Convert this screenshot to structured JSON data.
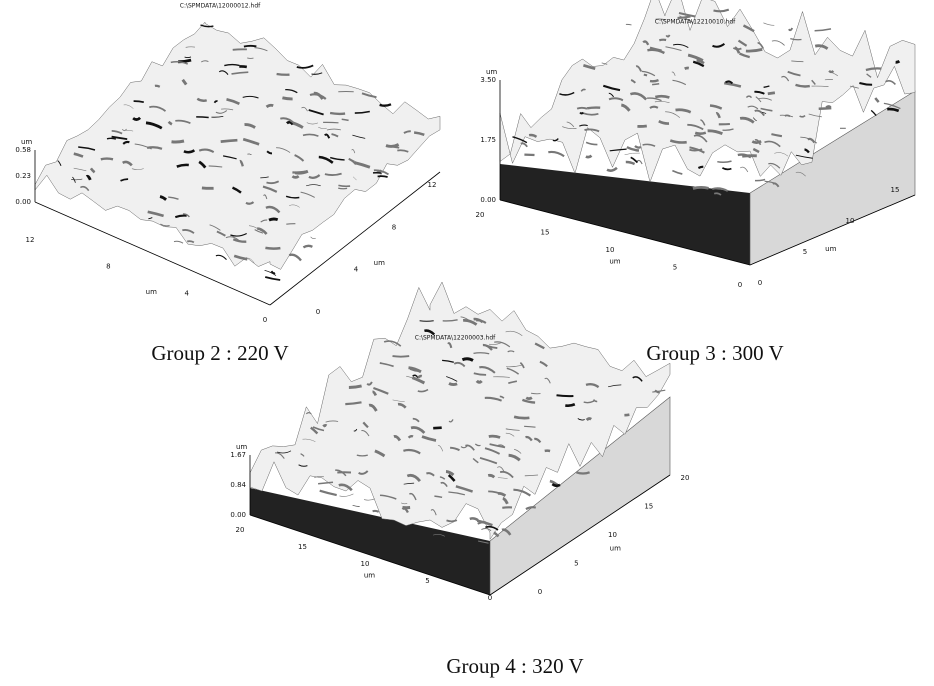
{
  "panels": [
    {
      "title": "C:\\SPMDATA\\12000012.hdf",
      "z_unit": "um",
      "z_ticks": [
        "0.58",
        "0.23",
        "0.00"
      ],
      "left_ticks": [
        "12",
        "8",
        "4",
        "0"
      ],
      "left_unit": "um",
      "right_ticks": [
        "12",
        "8",
        "4",
        "0"
      ],
      "right_unit": "um",
      "caption": "Group 2 : 220 V"
    },
    {
      "title": "C:\\SPMDATA\\12210010.hdf",
      "z_unit": "um",
      "z_ticks": [
        "3.50",
        "1.75",
        "0.00"
      ],
      "left_ticks": [
        "20",
        "15",
        "10",
        "5",
        "0"
      ],
      "left_unit": "um",
      "right_ticks": [
        "15",
        "10",
        "5",
        "0"
      ],
      "right_unit": "um",
      "caption": "Group 3 : 300 V"
    },
    {
      "title": "C:\\SPMDATA\\12200003.hdf",
      "z_unit": "um",
      "z_ticks": [
        "1.67",
        "0.84",
        "0.00"
      ],
      "left_ticks": [
        "20",
        "15",
        "10",
        "5",
        "0"
      ],
      "left_unit": "um",
      "right_ticks": [
        "20",
        "15",
        "10",
        "5",
        "0"
      ],
      "right_unit": "um",
      "caption": "Group 4 : 320 V"
    }
  ]
}
